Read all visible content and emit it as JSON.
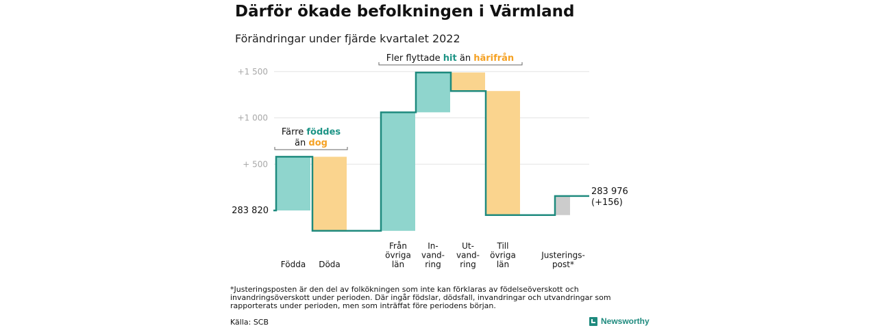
{
  "header": {
    "title": "Därför ökade befolkningen i Värmland",
    "subtitle": "Förändringar under fjärde kvartalet 2022"
  },
  "chart_data": {
    "type": "waterfall",
    "baseline_value": 283820,
    "baseline_label": "283 820",
    "end_label_line1": "283 976",
    "end_label_line2": "(+156)",
    "y_ticks": [
      {
        "value": 500,
        "label": "+ 500"
      },
      {
        "value": 1000,
        "label": "+1 000"
      },
      {
        "value": 1500,
        "label": "+1 500"
      }
    ],
    "steps": [
      {
        "id": "fodda",
        "lines": [
          "Födda"
        ],
        "start": 0,
        "end": 580,
        "kind": "pos"
      },
      {
        "id": "doda",
        "lines": [
          "Döda"
        ],
        "start": 580,
        "end": -220,
        "kind": "neg"
      },
      {
        "id": "fran",
        "lines": [
          "Från",
          "övriga",
          "län"
        ],
        "start": -220,
        "end": 1060,
        "kind": "pos"
      },
      {
        "id": "invandring",
        "lines": [
          "In-",
          "vand-",
          "ring"
        ],
        "start": 1060,
        "end": 1490,
        "kind": "pos"
      },
      {
        "id": "utvandring",
        "lines": [
          "Ut-",
          "vand-",
          "ring"
        ],
        "start": 1490,
        "end": 1290,
        "kind": "neg"
      },
      {
        "id": "till",
        "lines": [
          "Till",
          "övriga",
          "län"
        ],
        "start": 1290,
        "end": -50,
        "kind": "neg"
      },
      {
        "id": "justering",
        "lines": [
          "Justerings-",
          "post*"
        ],
        "start": -50,
        "end": 156,
        "kind": "adj"
      }
    ],
    "annotations": [
      {
        "id": "births",
        "line1": "Färre",
        "line1_accent": "föddes",
        "line2": "än",
        "line2_accent": "dog"
      },
      {
        "id": "moves",
        "prefix": "Fler flyttade",
        "accent1": "hit",
        "middle": "än",
        "accent2": "härifrån"
      }
    ],
    "colors": {
      "positive": "#8fd5cd",
      "negative": "#fad48e",
      "adjustment": "#cccccc",
      "line": "#1e8a7e",
      "accent_pos": "#1e9486",
      "accent_neg": "#f5a123",
      "grid": "#e3e3e3",
      "tick_text": "#a8a8a8"
    }
  },
  "footer": {
    "footnote": "*Justeringsposten är den del av folkökningen som inte kan förklaras av födelseöverskott och invandringsöverskott under perioden. Där ingår födslar, dödsfall, invandringar och utvandringar som rapporterats under perioden, men som inträffat före periodens början.",
    "source": "Källa: SCB",
    "brand": "Newsworthy",
    "brand_icon": "newsworthy-logo-icon"
  }
}
